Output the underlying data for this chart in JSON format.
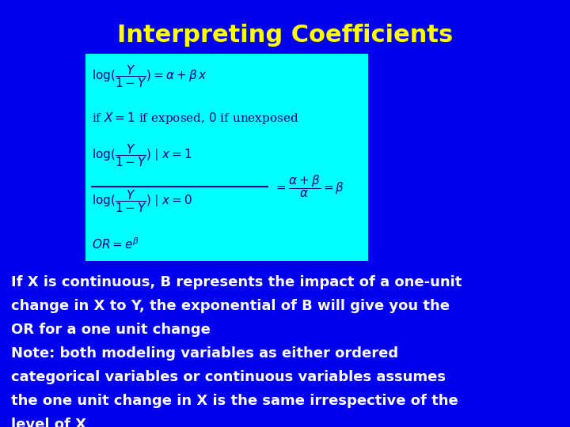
{
  "title": "Interpreting Coefficients",
  "title_color": "#FFFF00",
  "title_fontsize": 22,
  "background_color": "#0000EE",
  "box_color": "#00FFFF",
  "body_text_color": "#FFFFFF",
  "body_fontsize": 13.0,
  "body_lines": [
    "If X is continuous, B represents the impact of a one-unit",
    "change in X to Y, the exponential of B will give you the",
    "OR for a one unit change",
    "Note: both modeling variables as either ordered",
    "categorical variables or continuous variables assumes",
    "the one unit change in X is the same irrespective of the",
    "level of X"
  ]
}
